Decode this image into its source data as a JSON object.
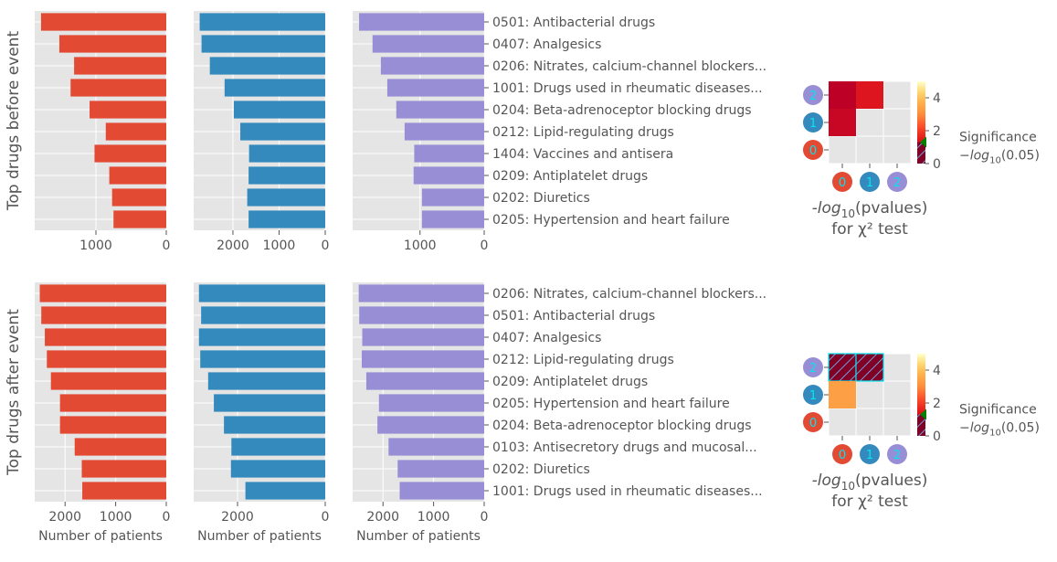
{
  "chart_data": {
    "type": "bar",
    "colors": {
      "cluster0": "#e24a33",
      "cluster1": "#348abd",
      "cluster2": "#988ed5",
      "panel_bg": "#e5e5e5",
      "grid": "#ffffff",
      "significance_marker": "#008000",
      "hatch_line": "#00e5ee"
    },
    "rows": [
      {
        "row_label": "Top drugs before event",
        "drug_labels": [
          "0501: Antibacterial drugs",
          "0407: Analgesics",
          "0206: Nitrates, calcium-channel blockers...",
          "1001: Drugs used in rheumatic diseases...",
          "0204: Beta-adrenoceptor blocking drugs",
          "0212: Lipid-regulating drugs",
          "1404: Vaccines and antisera",
          "0209: Antiplatelet drugs",
          "0202: Diuretics",
          "0205: Hypertension and heart failure"
        ],
        "panels": [
          {
            "cluster": "0",
            "xlim": [
              1870,
              0
            ],
            "xticks": [
              1000,
              0
            ],
            "xtick_labels": [
              "1000",
              "0"
            ],
            "values": [
              1780,
              1520,
              1310,
              1360,
              1090,
              860,
              1020,
              810,
              770,
              750
            ]
          },
          {
            "cluster": "1",
            "xlim": [
              2850,
              0
            ],
            "xticks": [
              2000,
              1000,
              0
            ],
            "xtick_labels": [
              "2000",
              "1000",
              "0"
            ],
            "values": [
              2720,
              2680,
              2500,
              2180,
              1980,
              1840,
              1650,
              1660,
              1690,
              1660
            ]
          },
          {
            "cluster": "2",
            "xlim": [
              2050,
              0
            ],
            "xticks": [
              1000,
              0
            ],
            "xtick_labels": [
              "1000",
              "0"
            ],
            "values": [
              1950,
              1740,
              1610,
              1510,
              1370,
              1240,
              1090,
              1100,
              970,
              970
            ]
          }
        ],
        "heatmap": {
          "labels": [
            "0",
            "1",
            "2"
          ],
          "cells": [
            {
              "row": "2",
              "col": "0",
              "value": 0.7
            },
            {
              "row": "2",
              "col": "1",
              "value": 1.3
            },
            {
              "row": "1",
              "col": "0",
              "value": 0.9
            }
          ],
          "xlabel": "-log10(pvalues)",
          "xlabel_line2": "for χ² test",
          "colorbar_ticks": [
            "0",
            "2",
            "4"
          ],
          "colorbar_range": [
            0,
            5
          ],
          "significance_label": "Significance",
          "significance_sublabel": "-log10(0.05)",
          "significance_value": 1.3
        }
      },
      {
        "row_label": "Top drugs after event",
        "drug_labels": [
          "0206: Nitrates, calcium-channel blockers...",
          "0501: Antibacterial drugs",
          "0407: Analgesics",
          "0212: Lipid-regulating drugs",
          "0209: Antiplatelet drugs",
          "0205: Hypertension and heart failure",
          "0204: Beta-adrenoceptor blocking drugs",
          "0103: Antisecretory drugs and mucosal...",
          "0202: Diuretics",
          "1001: Drugs used in rheumatic diseases..."
        ],
        "panels": [
          {
            "cluster": "0",
            "xlim": [
              2600,
              0
            ],
            "xticks": [
              2000,
              1000,
              0
            ],
            "xtick_labels": [
              "2000",
              "1000",
              "0"
            ],
            "xlabel": "Number of patients",
            "values": [
              2500,
              2470,
              2400,
              2360,
              2280,
              2100,
              2100,
              1810,
              1670,
              1660
            ]
          },
          {
            "cluster": "1",
            "xlim": [
              3000,
              0
            ],
            "xticks": [
              2000,
              0
            ],
            "xtick_labels": [
              "2000",
              "0"
            ],
            "xlabel": "Number of patients",
            "values": [
              2880,
              2830,
              2880,
              2850,
              2670,
              2540,
              2310,
              2140,
              2150,
              1820
            ]
          },
          {
            "cluster": "2",
            "xlim": [
              2600,
              0
            ],
            "xticks": [
              2000,
              1000,
              0
            ],
            "xtick_labels": [
              "2000",
              "1000",
              "0"
            ],
            "xlabel": "Number of patients",
            "values": [
              2480,
              2470,
              2410,
              2420,
              2330,
              2080,
              2110,
              1890,
              1710,
              1670
            ]
          }
        ],
        "heatmap": {
          "labels": [
            "0",
            "1",
            "2"
          ],
          "cells": [
            {
              "row": "2",
              "col": "0",
              "value": 6,
              "hatched": true
            },
            {
              "row": "2",
              "col": "1",
              "value": 6,
              "hatched": true
            },
            {
              "row": "1",
              "col": "0",
              "value": 3.2
            }
          ],
          "xlabel": "-log10(pvalues)",
          "xlabel_line2": "for χ² test",
          "colorbar_ticks": [
            "0",
            "2",
            "4"
          ],
          "colorbar_range": [
            0,
            5
          ],
          "significance_label": "Significance",
          "significance_sublabel": "-log10(0.05)",
          "significance_value": 1.3
        }
      }
    ]
  }
}
